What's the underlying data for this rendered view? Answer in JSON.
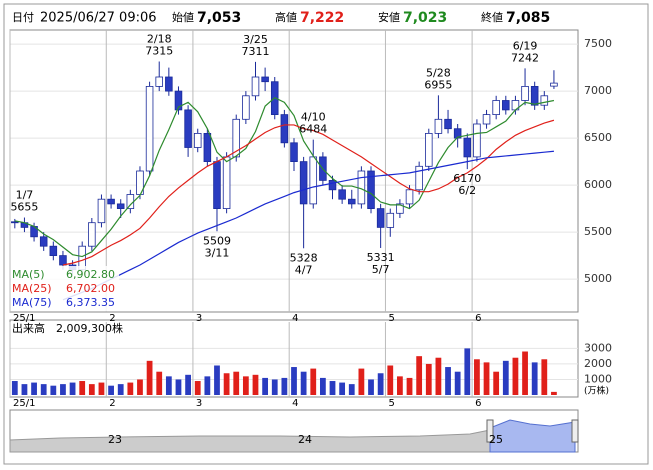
{
  "header": {
    "date_label": "日付",
    "datetime": "2025/06/27 09:06",
    "fields": [
      {
        "label": "始値",
        "value": "7,053",
        "color": "#000000"
      },
      {
        "label": "高値",
        "value": "7,222",
        "color": "#e0201a"
      },
      {
        "label": "安値",
        "value": "7,023",
        "color": "#1f8a1f"
      },
      {
        "label": "終値",
        "value": "7,085",
        "color": "#000000"
      }
    ]
  },
  "chart_data": [
    {
      "type": "candlestick",
      "ylim": [
        4650,
        7650
      ],
      "yticks": [
        5000,
        5500,
        6000,
        6500,
        7000,
        7500
      ],
      "slots": 59,
      "up_color": "#ffffff",
      "down_color": "#2a3cc0",
      "edge_color": "#1a2a9a",
      "xticks": [
        {
          "value": 0,
          "label": "25/1"
        },
        {
          "value": 10,
          "label": "2"
        },
        {
          "value": 19,
          "label": "3"
        },
        {
          "value": 29,
          "label": "4"
        },
        {
          "value": 39,
          "label": "5"
        },
        {
          "value": 48,
          "label": "6"
        }
      ],
      "open": [
        5610,
        5600,
        5560,
        5450,
        5350,
        5250,
        5150,
        5100,
        5350,
        5600,
        5850,
        5800,
        5750,
        5900,
        6150,
        7050,
        7150,
        7000,
        6800,
        6400,
        6550,
        6250,
        5750,
        6300,
        6700,
        6950,
        7150,
        7100,
        6750,
        6450,
        6250,
        5800,
        6300,
        6050,
        5950,
        5850,
        5800,
        6150,
        5750,
        5550,
        5700,
        5800,
        5950,
        6200,
        6550,
        6700,
        6600,
        6500,
        6300,
        6650,
        6750,
        6900,
        6800,
        6900,
        7050,
        6850,
        7053
      ],
      "high": [
        5640,
        5655,
        5600,
        5500,
        5400,
        5300,
        5200,
        5400,
        5650,
        5900,
        5900,
        5850,
        5950,
        6200,
        7100,
        7315,
        7250,
        7050,
        6850,
        6600,
        6600,
        6300,
        6350,
        6750,
        7000,
        7311,
        7250,
        7150,
        6800,
        6500,
        6300,
        6484,
        6350,
        6100,
        6000,
        5950,
        6200,
        6200,
        5800,
        5750,
        5850,
        6000,
        6250,
        6600,
        6955,
        6800,
        6650,
        6550,
        6700,
        6800,
        6950,
        6950,
        6950,
        7242,
        7100,
        7000,
        7222
      ],
      "low": [
        5540,
        5500,
        5400,
        5300,
        5200,
        5100,
        5050,
        5060,
        5300,
        5550,
        5750,
        5650,
        5700,
        5850,
        6100,
        7000,
        6950,
        6750,
        6300,
        6350,
        6200,
        5509,
        5700,
        6250,
        6650,
        6900,
        7000,
        6700,
        6400,
        6150,
        5328,
        5750,
        6000,
        5850,
        5800,
        5750,
        5750,
        5700,
        5331,
        5450,
        5650,
        5750,
        5900,
        6150,
        6500,
        6550,
        6400,
        6170,
        6250,
        6600,
        6700,
        6750,
        6750,
        6850,
        6800,
        6800,
        7023
      ],
      "close": [
        5600,
        5550,
        5450,
        5350,
        5250,
        5150,
        5100,
        5350,
        5600,
        5850,
        5800,
        5750,
        5900,
        6150,
        7050,
        7150,
        7000,
        6800,
        6400,
        6550,
        6250,
        5750,
        6300,
        6700,
        6950,
        7150,
        7100,
        6750,
        6450,
        6250,
        5800,
        6300,
        6050,
        5950,
        5850,
        5800,
        6150,
        5750,
        5550,
        5700,
        5800,
        5950,
        6200,
        6550,
        6700,
        6600,
        6500,
        6300,
        6650,
        6750,
        6900,
        6800,
        6900,
        7050,
        6850,
        6950,
        7085
      ],
      "ma": [
        {
          "name": "MA(5)",
          "color": "#2e8b2e",
          "latest": 6902.8,
          "latest_label": "6,902.80",
          "values": [
            5620,
            5600,
            5560,
            5480,
            5420,
            5340,
            5260,
            5240,
            5290,
            5410,
            5530,
            5670,
            5790,
            5890,
            6100,
            6370,
            6590,
            6830,
            6880,
            6780,
            6600,
            6350,
            6250,
            6310,
            6390,
            6570,
            6840,
            6930,
            6880,
            6740,
            6470,
            6310,
            6170,
            6070,
            5990,
            5990,
            5960,
            5910,
            5820,
            5790,
            5790,
            5750,
            5840,
            6040,
            6240,
            6400,
            6510,
            6530,
            6550,
            6560,
            6620,
            6680,
            6800,
            6880,
            6860,
            6880,
            6900
          ]
        },
        {
          "name": "MA(25)",
          "color": "#e0201a",
          "latest": 6702,
          "latest_label": "6,702.00",
          "values": [
            null,
            null,
            null,
            null,
            null,
            5150,
            5170,
            5200,
            5240,
            5300,
            5360,
            5410,
            5470,
            5540,
            5650,
            5770,
            5880,
            5970,
            6050,
            6130,
            6200,
            6250,
            6300,
            6360,
            6420,
            6490,
            6560,
            6610,
            6640,
            6640,
            6600,
            6580,
            6540,
            6480,
            6420,
            6360,
            6300,
            6230,
            6160,
            6090,
            6020,
            5960,
            5930,
            5930,
            5960,
            6010,
            6080,
            6130,
            6200,
            6280,
            6380,
            6460,
            6530,
            6580,
            6620,
            6660,
            6690
          ]
        },
        {
          "name": "MA(75)",
          "color": "#1a2ad0",
          "latest": 6373.35,
          "latest_label": "6,373.35",
          "values": [
            null,
            null,
            null,
            null,
            null,
            4780,
            4820,
            4860,
            4900,
            4950,
            5000,
            5050,
            5100,
            5150,
            5210,
            5270,
            5330,
            5390,
            5440,
            5490,
            5530,
            5570,
            5610,
            5650,
            5700,
            5750,
            5800,
            5840,
            5880,
            5920,
            5950,
            5980,
            6000,
            6020,
            6040,
            6060,
            6080,
            6090,
            6100,
            6110,
            6120,
            6130,
            6150,
            6170,
            6190,
            6210,
            6230,
            6250,
            6270,
            6290,
            6300,
            6310,
            6320,
            6330,
            6340,
            6350,
            6360
          ]
        }
      ],
      "annotations": [
        {
          "index": 1,
          "date": "1/7",
          "value": 5655,
          "pos": "above"
        },
        {
          "index": 15,
          "date": "2/18",
          "value": 7315,
          "pos": "above"
        },
        {
          "index": 21,
          "date": "3/11",
          "value": 5509,
          "pos": "below"
        },
        {
          "index": 25,
          "date": "3/25",
          "value": 7311,
          "pos": "above"
        },
        {
          "index": 30,
          "date": "4/7",
          "value": 5328,
          "pos": "below"
        },
        {
          "index": 31,
          "date": "4/10",
          "value": 6484,
          "pos": "above"
        },
        {
          "index": 38,
          "date": "5/7",
          "value": 5331,
          "pos": "below"
        },
        {
          "index": 44,
          "date": "5/28",
          "value": 6955,
          "pos": "above"
        },
        {
          "index": 47,
          "date": "6/2",
          "value": 6170,
          "pos": "below"
        },
        {
          "index": 53,
          "date": "6/19",
          "value": 7242,
          "pos": "above"
        }
      ]
    },
    {
      "type": "volume",
      "title": "出来高　2,009,300株",
      "unit": "(万株)",
      "ylim": [
        0,
        4700
      ],
      "yticks": [
        1000,
        2000,
        3000
      ],
      "slots": 59,
      "up_color": "#e0201a",
      "down_color": "#2a3cc0",
      "xticks": [
        {
          "value": 0,
          "label": "25/1"
        },
        {
          "value": 10,
          "label": "2"
        },
        {
          "value": 19,
          "label": "3"
        },
        {
          "value": 29,
          "label": "4"
        },
        {
          "value": 39,
          "label": "5"
        },
        {
          "value": 48,
          "label": "6"
        }
      ],
      "values": [
        900,
        700,
        800,
        700,
        600,
        700,
        800,
        900,
        700,
        800,
        600,
        700,
        800,
        1000,
        2200,
        1500,
        1200,
        1000,
        1300,
        900,
        1200,
        1900,
        1400,
        1500,
        1200,
        1300,
        1100,
        1000,
        1100,
        1800,
        1500,
        1700,
        1100,
        900,
        800,
        700,
        1700,
        1000,
        1400,
        1900,
        1200,
        1100,
        2500,
        2000,
        2400,
        1800,
        1500,
        3000,
        2300,
        2100,
        1500,
        2200,
        2400,
        2800,
        2100,
        2300,
        201
      ]
    }
  ],
  "navigator": {
    "labels": [
      "23",
      "24",
      "25"
    ]
  }
}
